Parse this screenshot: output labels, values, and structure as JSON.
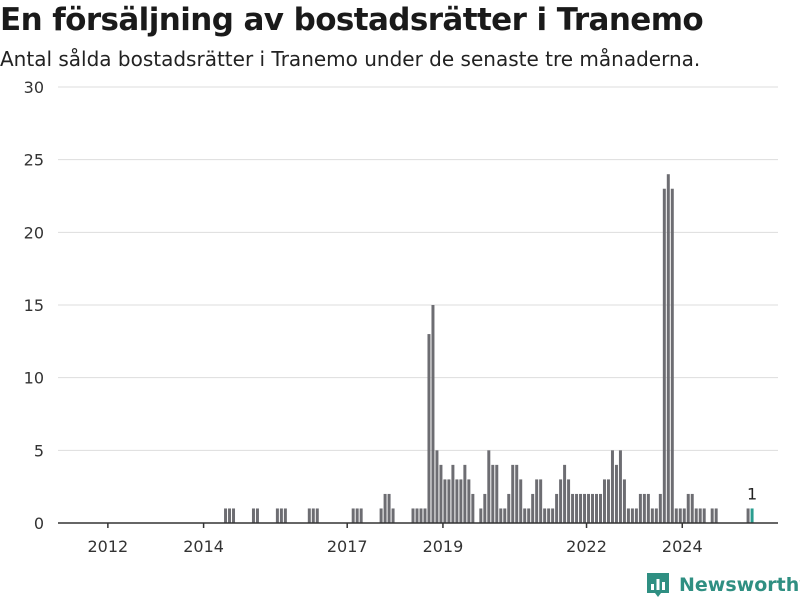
{
  "header": {
    "title": "En försäljning av bostadsrätter i Tranemo",
    "subtitle": "Antal sålda bostadsrätter i Tranemo under de senaste tre månaderna."
  },
  "brand": {
    "name": "Newsworthy",
    "icon": "bar-chart-logo-icon",
    "color": "#2f8f82"
  },
  "chart_data": {
    "type": "bar",
    "title": "En försäljning av bostadsrätter i Tranemo",
    "subtitle": "Antal sålda bostadsrätter i Tranemo under de senaste tre månaderna.",
    "xlabel": "",
    "ylabel": "",
    "x_unit": "month",
    "ylim": [
      0,
      30
    ],
    "yticks": [
      0,
      5,
      10,
      15,
      20,
      25,
      30
    ],
    "xlim": [
      "2011-01",
      "2025-12"
    ],
    "xticks": [
      "2012",
      "2014",
      "2017",
      "2019",
      "2022",
      "2024"
    ],
    "grid": true,
    "colors": {
      "bar": "#6d6d72",
      "highlight": "#2a9d8f",
      "grid": "#dddddd"
    },
    "annotation": {
      "x": "2025-06",
      "value": 1,
      "text": "1"
    },
    "x": [
      "2014-06",
      "2014-07",
      "2014-08",
      "2015-01",
      "2015-02",
      "2015-07",
      "2015-08",
      "2015-09",
      "2016-03",
      "2016-04",
      "2016-05",
      "2017-02",
      "2017-03",
      "2017-04",
      "2017-09",
      "2017-10",
      "2017-11",
      "2017-12",
      "2018-05",
      "2018-06",
      "2018-07",
      "2018-08",
      "2018-09",
      "2018-10",
      "2018-11",
      "2018-12",
      "2019-01",
      "2019-02",
      "2019-03",
      "2019-04",
      "2019-05",
      "2019-06",
      "2019-07",
      "2019-08",
      "2019-10",
      "2019-11",
      "2019-12",
      "2020-01",
      "2020-02",
      "2020-03",
      "2020-04",
      "2020-05",
      "2020-06",
      "2020-07",
      "2020-08",
      "2020-09",
      "2020-10",
      "2020-11",
      "2020-12",
      "2021-01",
      "2021-02",
      "2021-03",
      "2021-04",
      "2021-05",
      "2021-06",
      "2021-07",
      "2021-08",
      "2021-09",
      "2021-10",
      "2021-11",
      "2021-12",
      "2022-01",
      "2022-02",
      "2022-03",
      "2022-04",
      "2022-05",
      "2022-06",
      "2022-07",
      "2022-08",
      "2022-09",
      "2022-10",
      "2022-11",
      "2022-12",
      "2023-01",
      "2023-02",
      "2023-03",
      "2023-04",
      "2023-05",
      "2023-06",
      "2023-07",
      "2023-08",
      "2023-09",
      "2023-10",
      "2023-11",
      "2023-12",
      "2024-01",
      "2024-02",
      "2024-03",
      "2024-04",
      "2024-05",
      "2024-06",
      "2024-08",
      "2024-09",
      "2025-05",
      "2025-06"
    ],
    "values": [
      1,
      1,
      1,
      1,
      1,
      1,
      1,
      1,
      1,
      1,
      1,
      1,
      1,
      1,
      1,
      2,
      2,
      1,
      1,
      1,
      1,
      1,
      13,
      15,
      5,
      4,
      3,
      3,
      4,
      3,
      3,
      4,
      3,
      2,
      1,
      2,
      5,
      4,
      4,
      1,
      1,
      2,
      4,
      4,
      3,
      1,
      1,
      2,
      3,
      3,
      1,
      1,
      1,
      2,
      3,
      4,
      3,
      2,
      2,
      2,
      2,
      2,
      2,
      2,
      2,
      3,
      3,
      5,
      4,
      5,
      3,
      1,
      1,
      1,
      2,
      2,
      2,
      1,
      1,
      2,
      23,
      24,
      23,
      1,
      1,
      1,
      2,
      2,
      1,
      1,
      1,
      1,
      1,
      1,
      1
    ],
    "highlight_x": [
      "2025-06"
    ]
  }
}
